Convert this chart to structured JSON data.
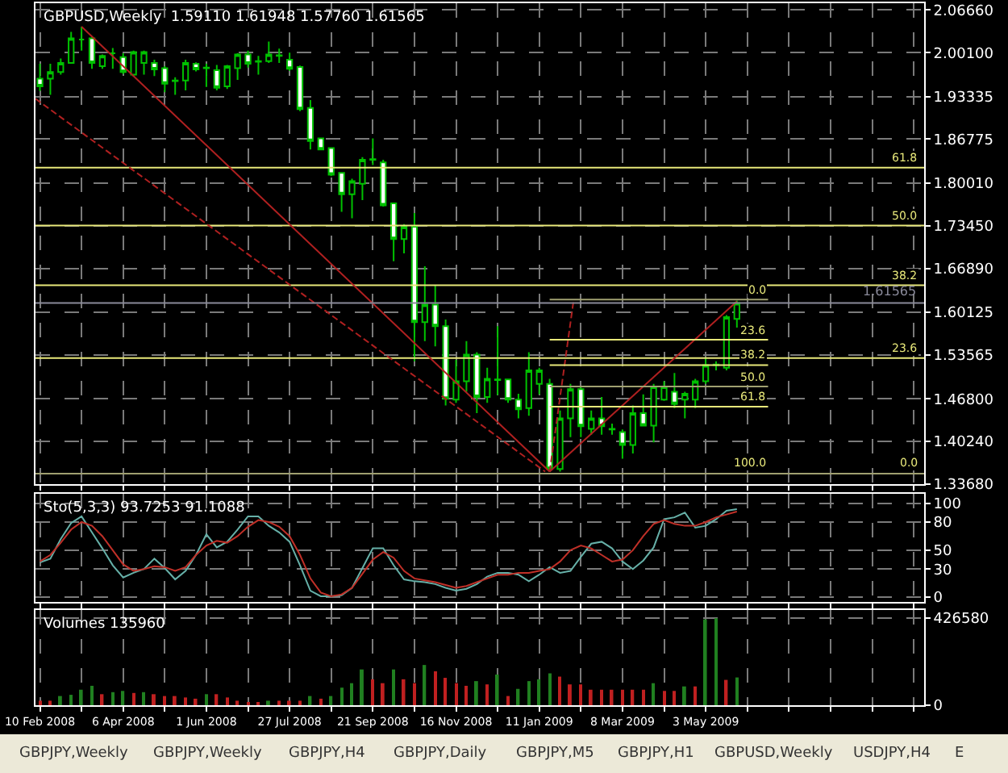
{
  "chart_data": [
    {
      "type": "candlestick",
      "title": "GBPUSD,Weekly  1.59110 1.61948 1.57760 1.61565",
      "x": [
        "2008-02-10",
        "2008-02-17",
        "2008-02-24",
        "2008-03-02",
        "2008-03-09",
        "2008-03-16",
        "2008-03-23",
        "2008-03-30",
        "2008-04-06",
        "2008-04-13",
        "2008-04-20",
        "2008-04-27",
        "2008-05-04",
        "2008-05-11",
        "2008-05-18",
        "2008-05-25",
        "2008-06-01",
        "2008-06-08",
        "2008-06-15",
        "2008-06-22",
        "2008-06-29",
        "2008-07-06",
        "2008-07-13",
        "2008-07-20",
        "2008-07-27",
        "2008-08-03",
        "2008-08-10",
        "2008-08-17",
        "2008-08-24",
        "2008-08-31",
        "2008-09-07",
        "2008-09-14",
        "2008-09-21",
        "2008-09-28",
        "2008-10-05",
        "2008-10-12",
        "2008-10-19",
        "2008-10-26",
        "2008-11-02",
        "2008-11-09",
        "2008-11-16",
        "2008-11-23",
        "2008-11-30",
        "2008-12-07",
        "2008-12-14",
        "2008-12-21",
        "2008-12-28",
        "2009-01-04",
        "2009-01-11",
        "2009-01-18",
        "2009-01-25",
        "2009-02-01",
        "2009-02-08",
        "2009-02-15",
        "2009-02-22",
        "2009-03-01",
        "2009-03-08",
        "2009-03-15",
        "2009-03-22",
        "2009-03-29",
        "2009-04-05",
        "2009-04-12",
        "2009-04-19",
        "2009-04-26",
        "2009-05-03",
        "2009-05-10",
        "2009-05-17",
        "2009-05-24"
      ],
      "ohlc": [
        [
          1.961,
          1.984,
          1.942,
          1.949
        ],
        [
          1.961,
          1.984,
          1.936,
          1.971
        ],
        [
          1.971,
          1.992,
          1.967,
          1.985
        ],
        [
          1.985,
          2.033,
          1.984,
          2.023
        ],
        [
          2.021,
          2.041,
          2.004,
          2.021
        ],
        [
          2.023,
          2.025,
          1.976,
          1.985
        ],
        [
          1.98,
          1.998,
          1.976,
          1.996
        ],
        [
          2.0,
          2.008,
          1.976,
          2.0
        ],
        [
          1.994,
          2.0,
          1.968,
          1.971
        ],
        [
          1.967,
          2.004,
          1.964,
          2.002
        ],
        [
          1.985,
          2.004,
          1.967,
          2.002
        ],
        [
          1.985,
          1.99,
          1.965,
          1.975
        ],
        [
          1.977,
          1.98,
          1.94,
          1.953
        ],
        [
          1.958,
          1.963,
          1.936,
          1.957
        ],
        [
          1.958,
          1.99,
          1.943,
          1.985
        ],
        [
          1.984,
          1.986,
          1.972,
          1.975
        ],
        [
          1.977,
          1.984,
          1.948,
          1.978
        ],
        [
          1.974,
          1.982,
          1.943,
          1.947
        ],
        [
          1.949,
          1.982,
          1.945,
          1.98
        ],
        [
          1.977,
          2.0,
          1.959,
          1.998
        ],
        [
          1.998,
          2.004,
          1.978,
          1.984
        ],
        [
          1.987,
          1.996,
          1.967,
          1.988
        ],
        [
          1.988,
          2.018,
          1.985,
          1.998
        ],
        [
          1.996,
          2.007,
          1.985,
          1.997
        ],
        [
          1.99,
          2.001,
          1.973,
          1.976
        ],
        [
          1.979,
          1.981,
          1.911,
          1.914
        ],
        [
          1.916,
          1.928,
          1.852,
          1.865
        ],
        [
          1.869,
          1.87,
          1.851,
          1.852
        ],
        [
          1.854,
          1.854,
          1.811,
          1.813
        ],
        [
          1.816,
          1.816,
          1.756,
          1.783
        ],
        [
          1.783,
          1.807,
          1.746,
          1.803
        ],
        [
          1.799,
          1.84,
          1.774,
          1.836
        ],
        [
          1.837,
          1.869,
          1.828,
          1.836
        ],
        [
          1.832,
          1.836,
          1.764,
          1.766
        ],
        [
          1.769,
          1.77,
          1.68,
          1.714
        ],
        [
          1.714,
          1.737,
          1.692,
          1.733
        ],
        [
          1.733,
          1.754,
          1.526,
          1.586
        ],
        [
          1.586,
          1.672,
          1.557,
          1.613
        ],
        [
          1.613,
          1.643,
          1.549,
          1.58
        ],
        [
          1.58,
          1.59,
          1.458,
          1.468
        ],
        [
          1.467,
          1.528,
          1.462,
          1.495
        ],
        [
          1.495,
          1.557,
          1.479,
          1.536
        ],
        [
          1.536,
          1.54,
          1.446,
          1.471
        ],
        [
          1.471,
          1.516,
          1.462,
          1.499
        ],
        [
          1.497,
          1.58,
          1.474,
          1.498
        ],
        [
          1.498,
          1.499,
          1.462,
          1.467
        ],
        [
          1.467,
          1.476,
          1.438,
          1.452
        ],
        [
          1.454,
          1.54,
          1.442,
          1.512
        ],
        [
          1.491,
          1.516,
          1.475,
          1.512
        ],
        [
          1.491,
          1.499,
          1.356,
          1.36
        ],
        [
          1.36,
          1.45,
          1.356,
          1.438
        ],
        [
          1.438,
          1.491,
          1.409,
          1.483
        ],
        [
          1.483,
          1.487,
          1.409,
          1.426
        ],
        [
          1.422,
          1.45,
          1.413,
          1.438
        ],
        [
          1.438,
          1.471,
          1.413,
          1.426
        ],
        [
          1.422,
          1.43,
          1.413,
          1.421
        ],
        [
          1.417,
          1.421,
          1.376,
          1.397
        ],
        [
          1.397,
          1.458,
          1.384,
          1.446
        ],
        [
          1.446,
          1.475,
          1.426,
          1.427
        ],
        [
          1.427,
          1.491,
          1.401,
          1.487
        ],
        [
          1.467,
          1.495,
          1.465,
          1.487
        ],
        [
          1.479,
          1.508,
          1.454,
          1.46
        ],
        [
          1.467,
          1.479,
          1.438,
          1.476
        ],
        [
          1.467,
          1.499,
          1.454,
          1.495
        ],
        [
          1.495,
          1.532,
          1.491,
          1.52
        ],
        [
          1.52,
          1.526,
          1.512,
          1.521
        ],
        [
          1.516,
          1.597,
          1.512,
          1.594
        ],
        [
          1.5911,
          1.61948,
          1.5776,
          1.61565
        ]
      ],
      "xlim": [
        "2008-02-07",
        "2009-09-27"
      ],
      "xticks": [
        {
          "value": "2008-02-10",
          "label": null
        },
        {
          "value": "2008-03-09",
          "label": null
        },
        {
          "value": "2008-04-06",
          "label": null
        },
        {
          "value": "2008-05-04",
          "label": null
        },
        {
          "value": "2008-06-01",
          "label": null
        },
        {
          "value": "2008-06-29",
          "label": null
        },
        {
          "value": "2008-07-27",
          "label": null
        },
        {
          "value": "2008-08-24",
          "label": null
        },
        {
          "value": "2008-09-21",
          "label": null
        },
        {
          "value": "2008-10-19",
          "label": null
        },
        {
          "value": "2008-11-16",
          "label": null
        },
        {
          "value": "2008-12-14",
          "label": null
        },
        {
          "value": "2009-01-11",
          "label": null
        },
        {
          "value": "2009-02-08",
          "label": null
        },
        {
          "value": "2009-03-08",
          "label": null
        },
        {
          "value": "2009-04-05",
          "label": null
        },
        {
          "value": "2009-05-03",
          "label": null
        },
        {
          "value": "2009-05-31",
          "label": null
        },
        {
          "value": "2009-06-28",
          "label": null
        },
        {
          "value": "2009-07-26",
          "label": null
        },
        {
          "value": "2009-08-23",
          "label": null
        },
        {
          "value": "2009-09-20",
          "label": null
        }
      ],
      "ylim": [
        1.3368,
        2.077
      ],
      "yticks": [
        {
          "value": 1.3368,
          "label": "1.33680"
        },
        {
          "value": 1.4024,
          "label": "1.40240"
        },
        {
          "value": 1.468,
          "label": "1.46800"
        },
        {
          "value": 1.53565,
          "label": "1.53565"
        },
        {
          "value": 1.60125,
          "label": "1.60125"
        },
        {
          "value": 1.6689,
          "label": "1.66890"
        },
        {
          "value": 1.7345,
          "label": "1.73450"
        },
        {
          "value": 1.8001,
          "label": "1.80010"
        },
        {
          "value": 1.86775,
          "label": "1.86775"
        },
        {
          "value": 1.93335,
          "label": "1.93335"
        },
        {
          "value": 2.001,
          "label": "2.00100"
        },
        {
          "value": 2.0666,
          "label": "2.06660"
        }
      ],
      "grid": true,
      "tick_labels": "y",
      "ref_lines": [
        {
          "axis": "y",
          "value": 1.61565,
          "label": "1.61565",
          "color": "#8a8a9a"
        }
      ],
      "series": [
        {
          "type": "line",
          "x": [
            "2008-02-07",
            "2009-09-27"
          ],
          "values": [
            1.824,
            1.824
          ],
          "color": "#e8e87a",
          "line_style": "solid"
        },
        {
          "type": "line",
          "x": [
            "2008-02-07",
            "2009-09-27"
          ],
          "values": [
            1.735,
            1.735
          ],
          "color": "#e8e87a",
          "line_style": "solid"
        },
        {
          "type": "line",
          "x": [
            "2008-02-07",
            "2009-09-27"
          ],
          "values": [
            1.643,
            1.643
          ],
          "color": "#e8e87a",
          "line_style": "solid"
        },
        {
          "type": "line",
          "x": [
            "2008-02-07",
            "2009-09-27"
          ],
          "values": [
            1.531,
            1.531
          ],
          "color": "#e8e87a",
          "line_style": "solid"
        },
        {
          "type": "line",
          "x": [
            "2008-02-07",
            "2009-09-27"
          ],
          "values": [
            1.353,
            1.353
          ],
          "color": "#a0a070",
          "line_style": "solid"
        },
        {
          "type": "line",
          "x": [
            "2008-03-09",
            "2009-01-18"
          ],
          "values": [
            2.041,
            1.356
          ],
          "color": "#b02020",
          "line_style": "solid"
        },
        {
          "type": "line",
          "x": [
            "2009-01-18",
            "2009-05-24"
          ],
          "values": [
            1.356,
            1.618
          ],
          "color": "#b02020",
          "line_style": "solid"
        },
        {
          "type": "line",
          "x": [
            "2008-02-07",
            "2009-01-15"
          ],
          "values": [
            1.93,
            1.356
          ],
          "color": "#b02020",
          "line_style": "dashed"
        },
        {
          "type": "line",
          "x": [
            "2009-01-18",
            "2009-02-03"
          ],
          "values": [
            1.356,
            1.618
          ],
          "color": "#b02020",
          "line_style": "dashed"
        },
        {
          "type": "line",
          "x": [
            "2009-01-18",
            "2009-06-14"
          ],
          "values": [
            1.621,
            1.621
          ],
          "color": "#a0a070",
          "line_style": "solid"
        },
        {
          "type": "line",
          "x": [
            "2009-01-18",
            "2009-06-14"
          ],
          "values": [
            1.559,
            1.559
          ],
          "color": "#e8e87a",
          "line_style": "solid"
        },
        {
          "type": "line",
          "x": [
            "2009-01-18",
            "2009-06-14"
          ],
          "values": [
            1.52,
            1.52
          ],
          "color": "#e8e87a",
          "line_style": "solid"
        },
        {
          "type": "line",
          "x": [
            "2009-01-18",
            "2009-06-14"
          ],
          "values": [
            1.487,
            1.487
          ],
          "color": "#a0a070",
          "line_style": "solid"
        },
        {
          "type": "line",
          "x": [
            "2009-01-18",
            "2009-06-14"
          ],
          "values": [
            1.456,
            1.456
          ],
          "color": "#e8e87a",
          "line_style": "solid"
        }
      ],
      "annotations": [
        {
          "text": "61.8",
          "x": "2009-09-24",
          "y": 1.824
        },
        {
          "text": "50.0",
          "x": "2009-09-24",
          "y": 1.735
        },
        {
          "text": "38.2",
          "x": "2009-09-24",
          "y": 1.643
        },
        {
          "text": "23.6",
          "x": "2009-09-24",
          "y": 1.531
        },
        {
          "text": "0.0",
          "x": "2009-09-24",
          "y": 1.353
        },
        {
          "text": "0.0",
          "x": "2009-06-14",
          "y": 1.621
        },
        {
          "text": "23.6",
          "x": "2009-06-14",
          "y": 1.559
        },
        {
          "text": "38.2",
          "x": "2009-06-14",
          "y": 1.52
        },
        {
          "text": "50.0",
          "x": "2009-06-14",
          "y": 1.487
        },
        {
          "text": "61.8",
          "x": "2009-06-14",
          "y": 1.456
        },
        {
          "text": "100.0",
          "x": "2009-06-14",
          "y": 1.353
        }
      ]
    },
    {
      "type": "line",
      "title": "Sto(5,3,3) 93.7253 91.1088",
      "x": [
        "2008-02-10",
        "2008-02-17",
        "2008-02-24",
        "2008-03-02",
        "2008-03-09",
        "2008-03-16",
        "2008-03-23",
        "2008-03-30",
        "2008-04-06",
        "2008-04-13",
        "2008-04-20",
        "2008-04-27",
        "2008-05-04",
        "2008-05-11",
        "2008-05-18",
        "2008-05-25",
        "2008-06-01",
        "2008-06-08",
        "2008-06-15",
        "2008-06-22",
        "2008-06-29",
        "2008-07-06",
        "2008-07-13",
        "2008-07-20",
        "2008-07-27",
        "2008-08-03",
        "2008-08-10",
        "2008-08-17",
        "2008-08-24",
        "2008-08-31",
        "2008-09-07",
        "2008-09-14",
        "2008-09-21",
        "2008-09-28",
        "2008-10-05",
        "2008-10-12",
        "2008-10-19",
        "2008-10-26",
        "2008-11-02",
        "2008-11-09",
        "2008-11-16",
        "2008-11-23",
        "2008-11-30",
        "2008-12-07",
        "2008-12-14",
        "2008-12-21",
        "2008-12-28",
        "2009-01-04",
        "2009-01-11",
        "2009-01-18",
        "2009-01-25",
        "2009-02-01",
        "2009-02-08",
        "2009-02-15",
        "2009-02-22",
        "2009-03-01",
        "2009-03-08",
        "2009-03-15",
        "2009-03-22",
        "2009-03-29",
        "2009-04-05",
        "2009-04-12",
        "2009-04-19",
        "2009-04-26",
        "2009-05-03",
        "2009-05-10",
        "2009-05-17",
        "2009-05-24"
      ],
      "series": [
        {
          "color": "#66b0a8",
          "values": [
            37,
            41,
            62,
            79,
            86,
            69,
            52,
            34,
            21,
            26,
            30,
            41,
            31,
            19,
            28,
            45,
            67,
            53,
            59,
            72,
            86,
            86,
            76,
            69,
            59,
            34,
            7,
            1,
            1,
            2,
            10,
            31,
            52,
            52,
            34,
            19,
            17,
            16,
            14,
            10,
            7,
            9,
            14,
            22,
            26,
            26,
            24,
            17,
            24,
            32,
            26,
            28,
            43,
            57,
            59,
            52,
            38,
            30,
            39,
            53,
            83,
            85,
            90,
            74,
            76,
            83,
            92,
            93.7253
          ]
        },
        {
          "color": "#c03028",
          "values": [
            38,
            45,
            58,
            72,
            80,
            76,
            65,
            50,
            35,
            28,
            30,
            33,
            32,
            28,
            32,
            45,
            55,
            60,
            58,
            65,
            75,
            82,
            80,
            75,
            65,
            45,
            20,
            5,
            1,
            3,
            10,
            25,
            40,
            48,
            42,
            28,
            20,
            18,
            16,
            13,
            10,
            12,
            16,
            20,
            24,
            24,
            26,
            26,
            28,
            30,
            38,
            50,
            55,
            52,
            45,
            38,
            40,
            50,
            65,
            78,
            82,
            78,
            76,
            76,
            80,
            85,
            88,
            91.1088
          ]
        }
      ],
      "xlim": [
        "2008-02-07",
        "2009-09-27"
      ],
      "xticks": [
        {
          "value": "2008-02-10",
          "label": null
        },
        {
          "value": "2008-03-09",
          "label": null
        },
        {
          "value": "2008-04-06",
          "label": null
        },
        {
          "value": "2008-05-04",
          "label": null
        },
        {
          "value": "2008-06-01",
          "label": null
        },
        {
          "value": "2008-06-29",
          "label": null
        },
        {
          "value": "2008-07-27",
          "label": null
        },
        {
          "value": "2008-08-24",
          "label": null
        },
        {
          "value": "2008-09-21",
          "label": null
        },
        {
          "value": "2008-10-19",
          "label": null
        },
        {
          "value": "2008-11-16",
          "label": null
        },
        {
          "value": "2008-12-14",
          "label": null
        },
        {
          "value": "2009-01-11",
          "label": null
        },
        {
          "value": "2009-02-08",
          "label": null
        },
        {
          "value": "2009-03-08",
          "label": null
        },
        {
          "value": "2009-04-05",
          "label": null
        },
        {
          "value": "2009-05-03",
          "label": null
        },
        {
          "value": "2009-05-31",
          "label": null
        },
        {
          "value": "2009-06-28",
          "label": null
        },
        {
          "value": "2009-07-26",
          "label": null
        },
        {
          "value": "2009-08-23",
          "label": null
        },
        {
          "value": "2009-09-20",
          "label": null
        }
      ],
      "ylim": [
        -5,
        110
      ],
      "yticks": [
        0,
        30,
        50,
        80,
        100
      ],
      "grid": true,
      "tick_labels": "y"
    },
    {
      "type": "bar",
      "title": "Volumes 135960",
      "x": [
        "2008-02-10",
        "2008-02-17",
        "2008-02-24",
        "2008-03-02",
        "2008-03-09",
        "2008-03-16",
        "2008-03-23",
        "2008-03-30",
        "2008-04-06",
        "2008-04-13",
        "2008-04-20",
        "2008-04-27",
        "2008-05-04",
        "2008-05-11",
        "2008-05-18",
        "2008-05-25",
        "2008-06-01",
        "2008-06-08",
        "2008-06-15",
        "2008-06-22",
        "2008-06-29",
        "2008-07-06",
        "2008-07-13",
        "2008-07-20",
        "2008-07-27",
        "2008-08-03",
        "2008-08-10",
        "2008-08-17",
        "2008-08-24",
        "2008-08-31",
        "2008-09-07",
        "2008-09-14",
        "2008-09-21",
        "2008-09-28",
        "2008-10-05",
        "2008-10-12",
        "2008-10-19",
        "2008-10-26",
        "2008-11-02",
        "2008-11-09",
        "2008-11-16",
        "2008-11-23",
        "2008-11-30",
        "2008-12-07",
        "2008-12-14",
        "2008-12-21",
        "2008-12-28",
        "2009-01-04",
        "2009-01-11",
        "2009-01-18",
        "2009-01-25",
        "2009-02-01",
        "2009-02-08",
        "2009-02-15",
        "2009-02-22",
        "2009-03-01",
        "2009-03-08",
        "2009-03-15",
        "2009-03-22",
        "2009-03-29",
        "2009-04-05",
        "2009-04-12",
        "2009-04-19",
        "2009-04-26",
        "2009-05-03",
        "2009-05-10",
        "2009-05-17",
        "2009-05-24"
      ],
      "values": [
        22000,
        22000,
        45000,
        51000,
        76000,
        95000,
        54000,
        64000,
        70000,
        60000,
        64000,
        54000,
        45000,
        45000,
        38000,
        32000,
        54000,
        54000,
        38000,
        22000,
        13000,
        13000,
        22000,
        22000,
        22000,
        22000,
        45000,
        32000,
        45000,
        86000,
        108000,
        175000,
        127000,
        108000,
        175000,
        127000,
        108000,
        197000,
        166000,
        134000,
        108000,
        95000,
        118000,
        102000,
        150000,
        45000,
        80000,
        118000,
        127000,
        156000,
        140000,
        102000,
        102000,
        76000,
        76000,
        76000,
        76000,
        76000,
        76000,
        108000,
        70000,
        70000,
        92000,
        92000,
        420000,
        426000,
        124000,
        135960
      ],
      "colors": [
        "#c02020",
        "#c02020",
        "#208020",
        "#208020",
        "#208020",
        "#208020",
        "#c02020",
        "#208020",
        "#208020",
        "#c02020",
        "#208020",
        "#c02020",
        "#c02020",
        "#c02020",
        "#c02020",
        "#c02020",
        "#208020",
        "#c02020",
        "#c02020",
        "#c02020",
        "#c02020",
        "#c02020",
        "#208020",
        "#c02020",
        "#c02020",
        "#c02020",
        "#208020",
        "#c02020",
        "#208020",
        "#208020",
        "#208020",
        "#208020",
        "#c02020",
        "#c02020",
        "#208020",
        "#c02020",
        "#c02020",
        "#208020",
        "#c02020",
        "#c02020",
        "#c02020",
        "#c02020",
        "#208020",
        "#c02020",
        "#208020",
        "#c02020",
        "#208020",
        "#208020",
        "#208020",
        "#208020",
        "#c02020",
        "#c02020",
        "#c02020",
        "#c02020",
        "#c02020",
        "#c02020",
        "#c02020",
        "#c02020",
        "#c02020",
        "#208020",
        "#c02020",
        "#c02020",
        "#208020",
        "#c02020",
        "#208020",
        "#208020",
        "#c02020",
        "#208020"
      ],
      "xlim": [
        "2008-02-07",
        "2009-09-27"
      ],
      "xticks": [
        {
          "value": "2008-02-10",
          "label": "10 Feb 2008"
        },
        {
          "value": "2008-03-09",
          "label": null
        },
        {
          "value": "2008-04-06",
          "label": "6 Apr 2008"
        },
        {
          "value": "2008-05-04",
          "label": null
        },
        {
          "value": "2008-06-01",
          "label": "1 Jun 2008"
        },
        {
          "value": "2008-06-29",
          "label": null
        },
        {
          "value": "2008-07-27",
          "label": "27 Jul 2008"
        },
        {
          "value": "2008-08-24",
          "label": null
        },
        {
          "value": "2008-09-21",
          "label": "21 Sep 2008"
        },
        {
          "value": "2008-10-19",
          "label": null
        },
        {
          "value": "2008-11-16",
          "label": "16 Nov 2008"
        },
        {
          "value": "2008-12-14",
          "label": null
        },
        {
          "value": "2009-01-11",
          "label": "11 Jan 2009"
        },
        {
          "value": "2009-02-08",
          "label": null
        },
        {
          "value": "2009-03-08",
          "label": "8 Mar 2009"
        },
        {
          "value": "2009-04-05",
          "label": null
        },
        {
          "value": "2009-05-03",
          "label": "3 May 2009"
        },
        {
          "value": "2009-05-31",
          "label": null
        },
        {
          "value": "2009-06-28",
          "label": null
        },
        {
          "value": "2009-07-26",
          "label": null
        },
        {
          "value": "2009-08-23",
          "label": null
        },
        {
          "value": "2009-09-20",
          "label": null
        }
      ],
      "ylim": [
        0,
        466000
      ],
      "yticks": [
        0,
        426580
      ],
      "grid": true,
      "annotations": [
        "GBPJPY,Weekly",
        "GBPJPY,Weekly",
        "GBPJPY,H4",
        "GBPJPY,Daily",
        "GBPJPY,M5",
        "GBPJPY,H1",
        "GBPUSD,Weekly",
        "USDJPY,H4",
        "E"
      ]
    }
  ]
}
